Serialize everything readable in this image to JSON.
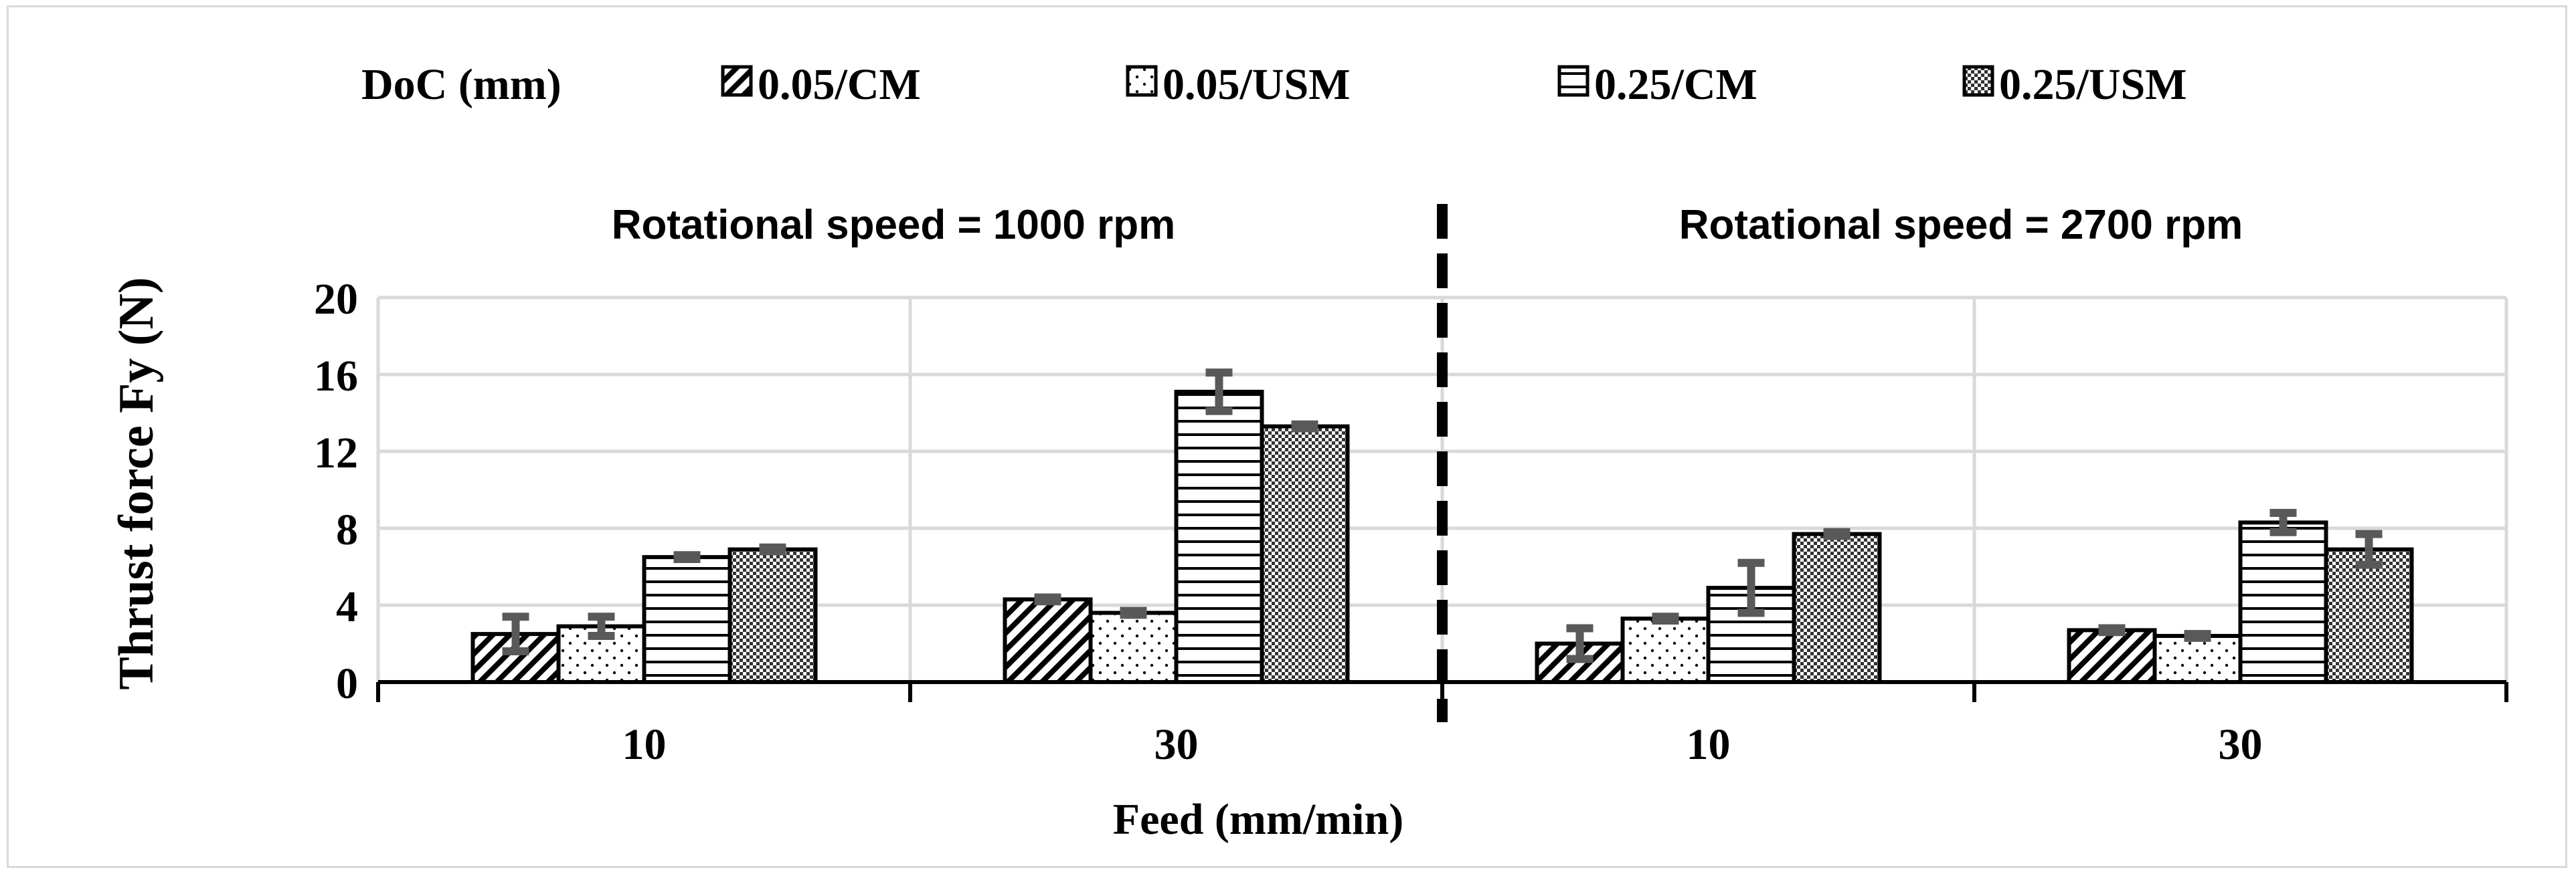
{
  "chart_data": {
    "type": "bar",
    "ylabel": "Thrust force Fy (N)",
    "xlabel": "Feed (mm/min)",
    "ylim": [
      0,
      20
    ],
    "yticks": [
      "0",
      "4",
      "8",
      "12",
      "16",
      "20"
    ],
    "grid": true,
    "legend_position": "top",
    "legend_title": "DoC (mm)",
    "panels": [
      {
        "label": "Rotational speed = 1000 rpm"
      },
      {
        "label": "Rotational speed = 2700 rpm"
      }
    ],
    "categories": [
      "10",
      "30",
      "10",
      "30"
    ],
    "series": [
      {
        "name": "0.05/CM",
        "pattern": "diagonal-hatch",
        "values": [
          2.5,
          4.3,
          2.0,
          2.7
        ],
        "errors": [
          0.9,
          0.1,
          0.8,
          0.1
        ]
      },
      {
        "name": "0.05/USM",
        "pattern": "dots",
        "values": [
          2.9,
          3.6,
          3.3,
          2.4
        ],
        "errors": [
          0.5,
          0.1,
          0.1,
          0.1
        ]
      },
      {
        "name": "0.25/CM",
        "pattern": "horizontal-lines",
        "values": [
          6.5,
          15.1,
          4.9,
          8.3
        ],
        "errors": [
          0.1,
          1.0,
          1.3,
          0.5
        ]
      },
      {
        "name": "0.25/USM",
        "pattern": "checker",
        "values": [
          6.9,
          13.3,
          7.7,
          6.9
        ],
        "errors": [
          0.1,
          0.1,
          0.1,
          0.8
        ]
      }
    ],
    "colors": {
      "bar_stroke": "#000000",
      "error_bar": "#595959",
      "grid": "#d9d9d9",
      "divider": "#000000"
    }
  }
}
